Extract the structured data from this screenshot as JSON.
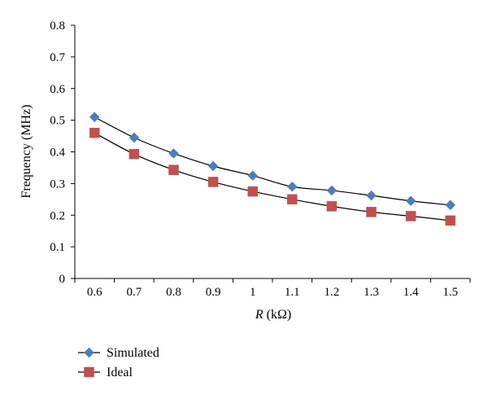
{
  "chart_data": {
    "type": "line",
    "xlabel_italic": "R",
    "xlabel_rest": " (kΩ)",
    "ylabel": "Frequency (MHz)",
    "x": [
      0.6,
      0.7,
      0.8,
      0.9,
      1.0,
      1.1,
      1.2,
      1.3,
      1.4,
      1.5
    ],
    "x_tick_labels": [
      "0.6",
      "0.7",
      "0.8",
      "0.9",
      "1",
      "1.1",
      "1.2",
      "1.3",
      "1.4",
      "1.5"
    ],
    "y_tick_labels": [
      "0",
      "0.1",
      "0.2",
      "0.3",
      "0.4",
      "0.5",
      "0.6",
      "0.7",
      "0.8"
    ],
    "ylim": [
      0,
      0.8
    ],
    "y_step": 0.1,
    "grid": false,
    "legend_position": "bottom-left",
    "series": [
      {
        "name": "Simulated",
        "marker": "diamond",
        "color": "#4a7ebb",
        "values": [
          0.51,
          0.445,
          0.395,
          0.355,
          0.325,
          0.29,
          0.278,
          0.262,
          0.245,
          0.232
        ]
      },
      {
        "name": "Ideal",
        "marker": "square",
        "color": "#c0504d",
        "values": [
          0.46,
          0.393,
          0.343,
          0.305,
          0.275,
          0.25,
          0.228,
          0.21,
          0.197,
          0.183
        ]
      }
    ]
  }
}
